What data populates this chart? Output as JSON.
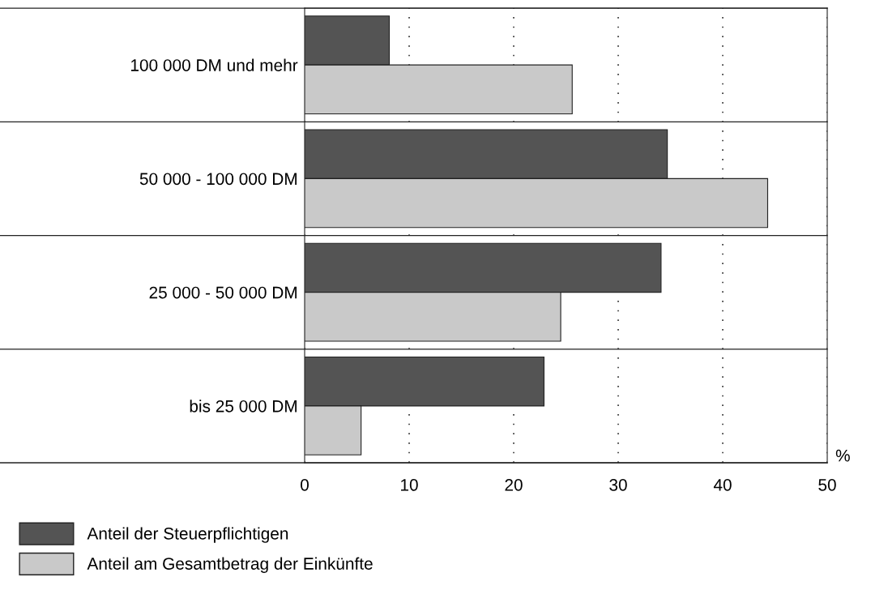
{
  "chart_data": {
    "type": "bar",
    "orientation": "horizontal",
    "xlabel": "%",
    "categories": [
      "100 000 DM und mehr",
      "50 000 - 100 000 DM",
      "25 000 - 50 000 DM",
      "bis 25 000 DM"
    ],
    "series": [
      {
        "name": "Anteil der Steuerpflichtigen",
        "color": "#545454",
        "values": [
          8.1,
          34.7,
          34.1,
          22.9
        ]
      },
      {
        "name": "Anteil am Gesamtbetrag der Einkünfte",
        "color": "#c9c9c9",
        "values": [
          25.6,
          44.3,
          24.5,
          5.4
        ]
      }
    ],
    "xlim": [
      0,
      50
    ],
    "xticks": [
      0,
      10,
      20,
      30,
      40,
      50
    ],
    "grid": "x",
    "legend": "bottom left"
  }
}
